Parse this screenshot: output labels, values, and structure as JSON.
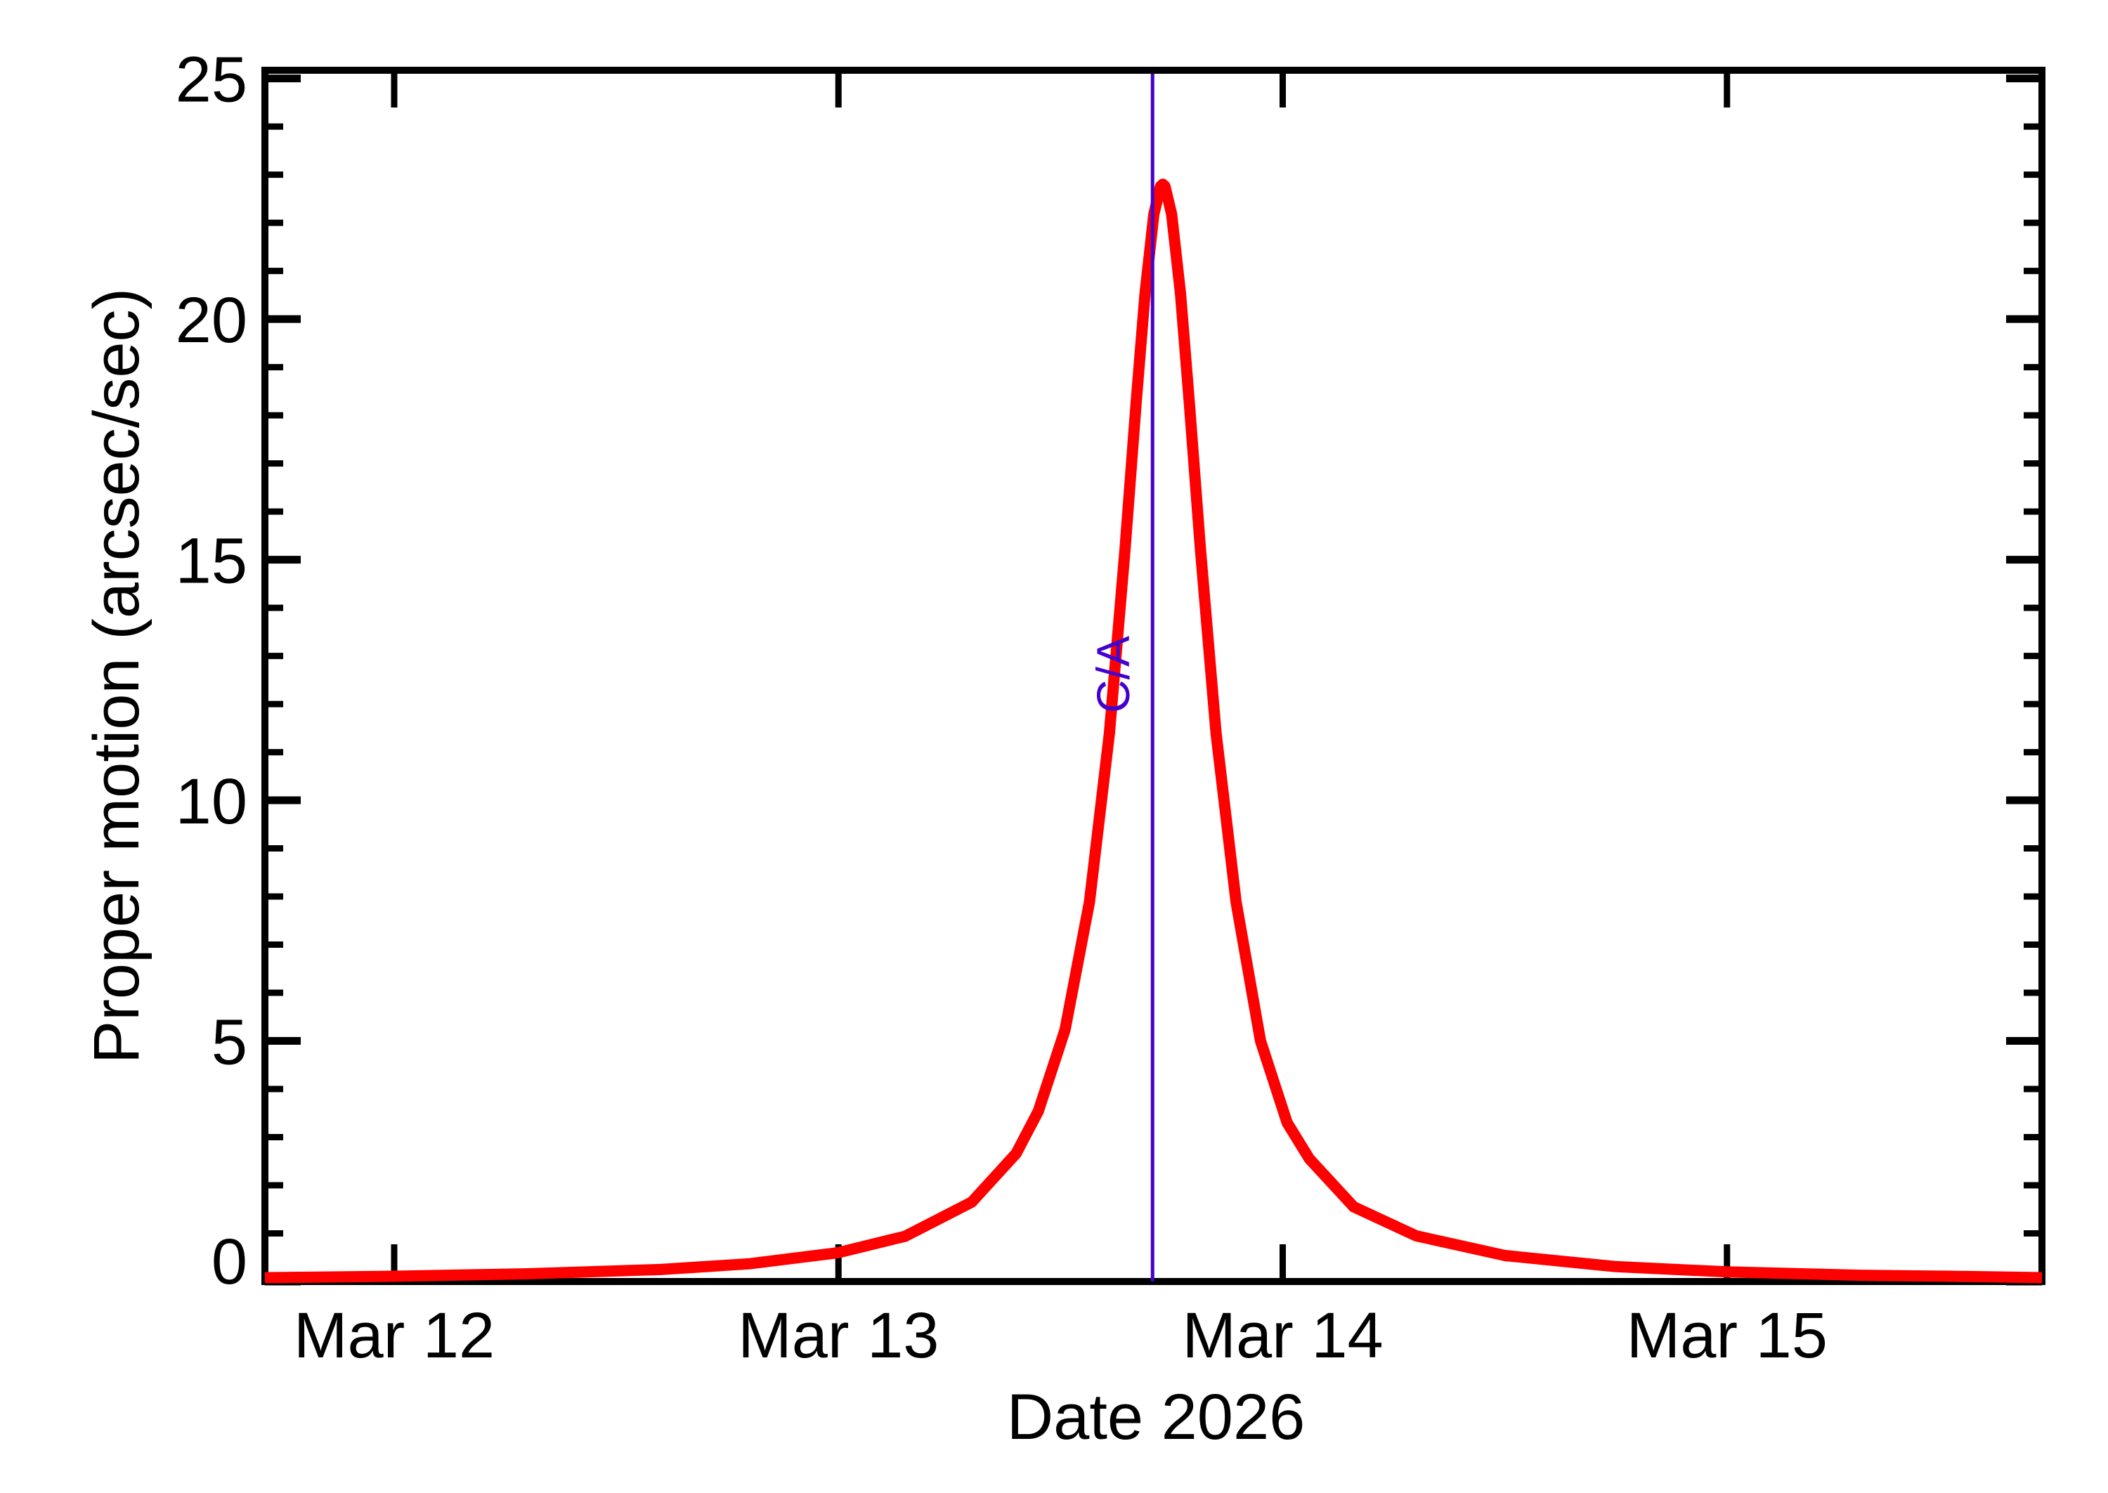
{
  "page": {
    "background": "#FFFFFF",
    "frame_color": "#000000",
    "text_color": "#000000"
  },
  "chart_data": {
    "type": "line",
    "title": "",
    "xlabel": "Date 2026",
    "ylabel": "Proper motion (arcsec/sec)",
    "grid": "off",
    "legend": "none",
    "x_axis": {
      "unit": "day of March 2026",
      "range_days": [
        11.709,
        15.709
      ],
      "tick_days": [
        12,
        13,
        14,
        15
      ],
      "tick_labels": [
        "Mar 12",
        "Mar 13",
        "Mar 14",
        "Mar 15"
      ]
    },
    "y_axis": {
      "range": [
        0,
        25.17
      ],
      "major_ticks": [
        0,
        5,
        10,
        15,
        20,
        25
      ],
      "major_tick_labels": [
        "0",
        "5",
        "10",
        "15",
        "20",
        "25"
      ],
      "minor_tick_step": 1
    },
    "annotation": {
      "label": "C/A",
      "day": 13.707,
      "color": "#4400CC"
    },
    "peak": {
      "day": 13.73,
      "value": 22.8
    },
    "series": [
      {
        "name": "proper motion",
        "color": "#FF0000",
        "points": [
          [
            11.709,
            0.08
          ],
          [
            12.0,
            0.11
          ],
          [
            12.3,
            0.16
          ],
          [
            12.6,
            0.25
          ],
          [
            12.8,
            0.37
          ],
          [
            13.0,
            0.6
          ],
          [
            13.15,
            0.94
          ],
          [
            13.3,
            1.65
          ],
          [
            13.4,
            2.66
          ],
          [
            13.45,
            3.54
          ],
          [
            13.51,
            5.23
          ],
          [
            13.565,
            7.89
          ],
          [
            13.61,
            11.4
          ],
          [
            13.645,
            15.2
          ],
          [
            13.67,
            18.24
          ],
          [
            13.69,
            20.52
          ],
          [
            13.71,
            22.18
          ],
          [
            13.725,
            22.76
          ],
          [
            13.73,
            22.8
          ],
          [
            13.735,
            22.76
          ],
          [
            13.75,
            22.18
          ],
          [
            13.77,
            20.52
          ],
          [
            13.79,
            18.24
          ],
          [
            13.815,
            15.2
          ],
          [
            13.85,
            11.4
          ],
          [
            13.895,
            7.89
          ],
          [
            13.95,
            5.0
          ],
          [
            14.01,
            3.3
          ],
          [
            14.06,
            2.55
          ],
          [
            14.16,
            1.55
          ],
          [
            14.3,
            0.95
          ],
          [
            14.5,
            0.54
          ],
          [
            14.75,
            0.31
          ],
          [
            15.0,
            0.2
          ],
          [
            15.3,
            0.13
          ],
          [
            15.5,
            0.11
          ],
          [
            15.709,
            0.08
          ]
        ]
      }
    ]
  }
}
